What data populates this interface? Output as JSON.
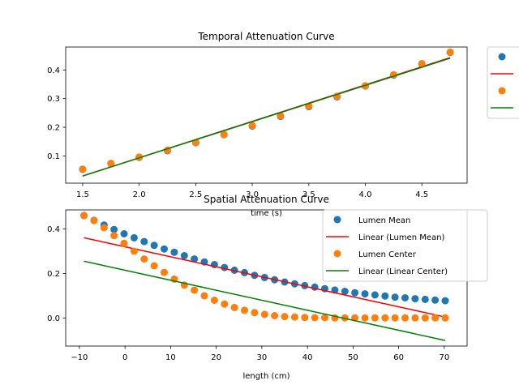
{
  "chart_data": [
    {
      "type": "scatter",
      "title": "Temporal Attenuation Curve",
      "xlabel": "time (s)",
      "ylabel": "",
      "xlim": [
        1.35,
        4.9
      ],
      "ylim": [
        0.005,
        0.48
      ],
      "xticks": [
        1.5,
        2.0,
        2.5,
        3.0,
        3.5,
        4.0,
        4.5
      ],
      "xtick_labels": [
        "1.5",
        "2.0",
        "2.5",
        "3.0",
        "3.5",
        "4.0",
        "4.5"
      ],
      "yticks": [
        0.1,
        0.2,
        0.3,
        0.4
      ],
      "ytick_labels": [
        "0.1",
        "0.2",
        "0.3",
        "0.4"
      ],
      "grid": false,
      "legend_position": "outside-right",
      "legend_labels": [
        "",
        "",
        "",
        ""
      ],
      "x": [
        1.5,
        1.75,
        2.0,
        2.25,
        2.5,
        2.75,
        3.0,
        3.25,
        3.5,
        3.75,
        4.0,
        4.25,
        4.5,
        4.75
      ],
      "series": [
        {
          "kind": "points",
          "color": "#1f77b4",
          "values": [
            0.053,
            0.073,
            0.095,
            0.118,
            0.146,
            0.174,
            0.204,
            0.238,
            0.272,
            0.306,
            0.344,
            0.382,
            0.421,
            0.461
          ]
        },
        {
          "kind": "line",
          "color": "#ff0000",
          "x": [
            1.5,
            4.75
          ],
          "values": [
            0.03,
            0.443
          ]
        },
        {
          "kind": "points",
          "color": "#ff7f0e",
          "values": [
            0.054,
            0.074,
            0.096,
            0.12,
            0.147,
            0.175,
            0.206,
            0.24,
            0.274,
            0.308,
            0.345,
            0.383,
            0.422,
            0.462
          ]
        },
        {
          "kind": "line",
          "color": "#008000",
          "x": [
            1.5,
            4.75
          ],
          "values": [
            0.03,
            0.441
          ]
        }
      ]
    },
    {
      "type": "scatter",
      "title": "Spatial Attenuation Curve",
      "xlabel": "length (cm)",
      "ylabel": "",
      "xlim": [
        -13,
        75
      ],
      "ylim": [
        -0.125,
        0.485
      ],
      "xticks": [
        -10,
        0,
        10,
        20,
        30,
        40,
        50,
        60,
        70
      ],
      "xtick_labels": [
        "−10",
        "0",
        "10",
        "20",
        "30",
        "40",
        "50",
        "60",
        "70"
      ],
      "yticks": [
        0.0,
        0.2,
        0.4
      ],
      "ytick_labels": [
        "0.0",
        "0.2",
        "0.4"
      ],
      "grid": false,
      "legend_position": "upper-right",
      "legend_labels": [
        "Lumen Mean",
        "Linear (Lumen Mean)",
        "Lumen Center",
        "Linear (Linear Center)"
      ],
      "x": [
        -9.0,
        -6.8,
        -4.6,
        -2.4,
        -0.2,
        2.0,
        4.2,
        6.4,
        8.6,
        10.8,
        13.0,
        15.2,
        17.4,
        19.6,
        21.8,
        24.0,
        26.2,
        28.4,
        30.6,
        32.8,
        35.0,
        37.2,
        39.4,
        41.6,
        43.8,
        46.0,
        48.2,
        50.4,
        52.6,
        54.8,
        57.0,
        59.2,
        61.4,
        63.6,
        65.8,
        68.0,
        70.2
      ],
      "series": [
        {
          "name": "Lumen Mean",
          "kind": "points",
          "color": "#1f77b4",
          "values": [
            0.46,
            0.438,
            0.417,
            0.397,
            0.378,
            0.36,
            0.343,
            0.326,
            0.31,
            0.295,
            0.28,
            0.265,
            0.252,
            0.24,
            0.227,
            0.215,
            0.204,
            0.192,
            0.182,
            0.172,
            0.162,
            0.154,
            0.146,
            0.139,
            0.132,
            0.126,
            0.12,
            0.114,
            0.109,
            0.104,
            0.099,
            0.094,
            0.091,
            0.087,
            0.084,
            0.081,
            0.078
          ]
        },
        {
          "name": "Linear (Lumen Mean)",
          "kind": "line",
          "color": "#ff0000",
          "x": [
            -9,
            70.2
          ],
          "values": [
            0.36,
            0.005
          ]
        },
        {
          "name": "Lumen Center",
          "kind": "points",
          "color": "#ff7f0e",
          "values": [
            0.46,
            0.437,
            0.405,
            0.37,
            0.335,
            0.3,
            0.265,
            0.235,
            0.205,
            0.175,
            0.148,
            0.125,
            0.1,
            0.08,
            0.063,
            0.048,
            0.035,
            0.025,
            0.017,
            0.011,
            0.007,
            0.005,
            0.003,
            0.002,
            0.002,
            0.001,
            0.001,
            0.001,
            0.001,
            0.001,
            0.001,
            0.001,
            0.001,
            0.001,
            0.001,
            0.001,
            0.001
          ]
        },
        {
          "name": "Linear (Linear Center)",
          "kind": "line",
          "color": "#008000",
          "x": [
            -9,
            70.2
          ],
          "values": [
            0.255,
            -0.1
          ]
        }
      ]
    }
  ]
}
